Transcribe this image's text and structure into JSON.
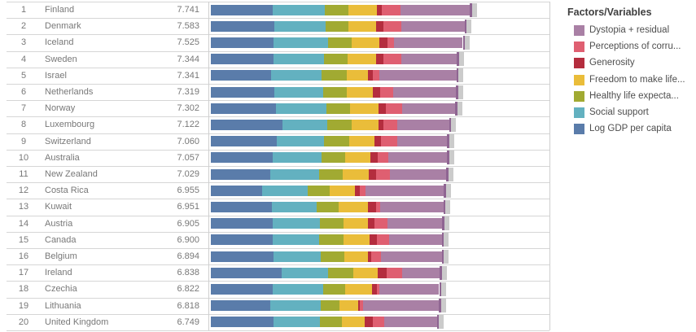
{
  "legend": {
    "title": "Factors/Variables",
    "items": [
      {
        "id": "dystopia",
        "label": "Dystopia + residual",
        "color": "#a980a5"
      },
      {
        "id": "corruption",
        "label": "Perceptions of corru...",
        "color": "#df5f71"
      },
      {
        "id": "generosity",
        "label": "Generosity",
        "color": "#b42d3e"
      },
      {
        "id": "freedom",
        "label": "Freedom to make life...",
        "color": "#eabd3a"
      },
      {
        "id": "healthy",
        "label": "Healthy life expecta...",
        "color": "#a1aa32"
      },
      {
        "id": "social",
        "label": "Social support",
        "color": "#63b1c0"
      },
      {
        "id": "gdp",
        "label": "Log GDP per capita",
        "color": "#5a7caa"
      }
    ]
  },
  "chart_data": {
    "type": "bar",
    "orientation": "horizontal",
    "stacked": true,
    "title": "",
    "xlabel": "",
    "ylabel": "",
    "x_range": [
      0,
      10.1
    ],
    "grid": "row-lines",
    "legend_position": "right",
    "whisker_color": "#cbcbcb",
    "whisker_edge_color": "#8f6592",
    "segment_order": [
      "gdp",
      "social",
      "healthy",
      "freedom",
      "generosity",
      "corruption",
      "dystopia"
    ],
    "rows": [
      {
        "rank": "1",
        "country": "Finland",
        "score": "7.741",
        "segments": {
          "gdp": 1.844,
          "social": 1.572,
          "healthy": 0.695,
          "freedom": 0.859,
          "generosity": 0.142,
          "corruption": 0.546,
          "dystopia": 2.082
        }
      },
      {
        "rank": "2",
        "country": "Denmark",
        "score": "7.583",
        "segments": {
          "gdp": 1.908,
          "social": 1.52,
          "healthy": 0.699,
          "freedom": 0.823,
          "generosity": 0.204,
          "corruption": 0.548,
          "dystopia": 1.881
        }
      },
      {
        "rank": "3",
        "country": "Iceland",
        "score": "7.525",
        "segments": {
          "gdp": 1.881,
          "social": 1.617,
          "healthy": 0.718,
          "freedom": 0.819,
          "generosity": 0.258,
          "corruption": 0.182,
          "dystopia": 2.05
        }
      },
      {
        "rank": "4",
        "country": "Sweden",
        "score": "7.344",
        "segments": {
          "gdp": 1.878,
          "social": 1.501,
          "healthy": 0.724,
          "freedom": 0.838,
          "generosity": 0.221,
          "corruption": 0.524,
          "dystopia": 1.658
        }
      },
      {
        "rank": "5",
        "country": "Israel",
        "score": "7.341",
        "segments": {
          "gdp": 1.803,
          "social": 1.513,
          "healthy": 0.74,
          "freedom": 0.641,
          "generosity": 0.153,
          "corruption": 0.193,
          "dystopia": 2.298
        }
      },
      {
        "rank": "6",
        "country": "Netherlands",
        "score": "7.319",
        "segments": {
          "gdp": 1.901,
          "social": 1.462,
          "healthy": 0.706,
          "freedom": 0.776,
          "generosity": 0.209,
          "corruption": 0.394,
          "dystopia": 1.871
        }
      },
      {
        "rank": "7",
        "country": "Norway",
        "score": "7.302",
        "segments": {
          "gdp": 1.952,
          "social": 1.517,
          "healthy": 0.704,
          "freedom": 0.835,
          "generosity": 0.224,
          "corruption": 0.484,
          "dystopia": 1.586
        }
      },
      {
        "rank": "8",
        "country": "Luxembourg",
        "score": "7.122",
        "segments": {
          "gdp": 2.141,
          "social": 1.355,
          "healthy": 0.708,
          "freedom": 0.801,
          "generosity": 0.146,
          "corruption": 0.432,
          "dystopia": 1.539
        }
      },
      {
        "rank": "9",
        "country": "Switzerland",
        "score": "7.060",
        "segments": {
          "gdp": 1.97,
          "social": 1.425,
          "healthy": 0.747,
          "freedom": 0.759,
          "generosity": 0.173,
          "corruption": 0.498,
          "dystopia": 1.488
        }
      },
      {
        "rank": "10",
        "country": "Australia",
        "score": "7.057",
        "segments": {
          "gdp": 1.854,
          "social": 1.461,
          "healthy": 0.692,
          "freedom": 0.756,
          "generosity": 0.225,
          "corruption": 0.323,
          "dystopia": 1.746
        }
      },
      {
        "rank": "11",
        "country": "New Zealand",
        "score": "7.029",
        "segments": {
          "gdp": 1.784,
          "social": 1.463,
          "healthy": 0.693,
          "freedom": 0.774,
          "generosity": 0.225,
          "corruption": 0.406,
          "dystopia": 1.684
        }
      },
      {
        "rank": "12",
        "country": "Costa Rica",
        "score": "6.955",
        "segments": {
          "gdp": 1.546,
          "social": 1.364,
          "healthy": 0.637,
          "freedom": 0.76,
          "generosity": 0.146,
          "corruption": 0.162,
          "dystopia": 2.34
        }
      },
      {
        "rank": "13",
        "country": "Kuwait",
        "score": "6.951",
        "segments": {
          "gdp": 1.83,
          "social": 1.33,
          "healthy": 0.66,
          "freedom": 0.87,
          "generosity": 0.24,
          "corruption": 0.14,
          "dystopia": 1.881
        }
      },
      {
        "rank": "14",
        "country": "Austria",
        "score": "6.905",
        "segments": {
          "gdp": 1.861,
          "social": 1.393,
          "healthy": 0.717,
          "freedom": 0.735,
          "generosity": 0.177,
          "corruption": 0.386,
          "dystopia": 1.636
        }
      },
      {
        "rank": "15",
        "country": "Canada",
        "score": "6.900",
        "segments": {
          "gdp": 1.848,
          "social": 1.402,
          "healthy": 0.718,
          "freedom": 0.779,
          "generosity": 0.208,
          "corruption": 0.365,
          "dystopia": 1.58
        }
      },
      {
        "rank": "16",
        "country": "Belgium",
        "score": "6.894",
        "segments": {
          "gdp": 1.87,
          "social": 1.413,
          "healthy": 0.71,
          "freedom": 0.703,
          "generosity": 0.109,
          "corruption": 0.291,
          "dystopia": 1.798
        }
      },
      {
        "rank": "17",
        "country": "Ireland",
        "score": "6.838",
        "segments": {
          "gdp": 2.129,
          "social": 1.39,
          "healthy": 0.731,
          "freedom": 0.749,
          "generosity": 0.244,
          "corruption": 0.483,
          "dystopia": 1.112
        }
      },
      {
        "rank": "18",
        "country": "Czechia",
        "score": "6.822",
        "segments": {
          "gdp": 1.845,
          "social": 1.51,
          "healthy": 0.66,
          "freedom": 0.802,
          "generosity": 0.146,
          "corruption": 0.082,
          "dystopia": 1.777
        }
      },
      {
        "rank": "19",
        "country": "Lithuania",
        "score": "6.818",
        "segments": {
          "gdp": 1.78,
          "social": 1.5,
          "healthy": 0.56,
          "freedom": 0.56,
          "generosity": 0.065,
          "corruption": 0.09,
          "dystopia": 2.263
        }
      },
      {
        "rank": "20",
        "country": "United Kingdom",
        "score": "6.749",
        "segments": {
          "gdp": 1.87,
          "social": 1.396,
          "healthy": 0.662,
          "freedom": 0.674,
          "generosity": 0.244,
          "corruption": 0.331,
          "dystopia": 1.572
        }
      }
    ]
  }
}
